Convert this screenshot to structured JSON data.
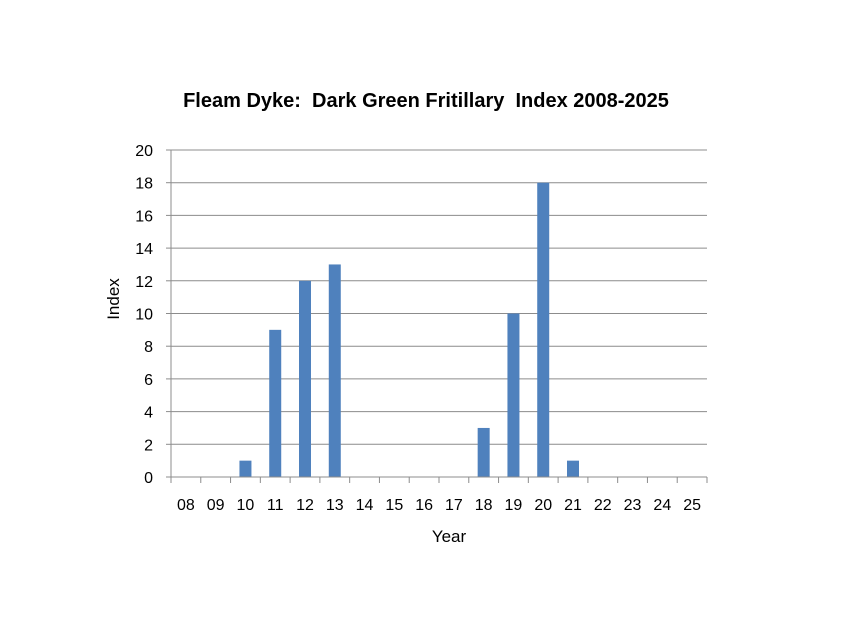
{
  "chart_data": {
    "type": "bar",
    "title": "Fleam Dyke:  Dark Green Fritillary  Index 2008-2025",
    "xlabel": "Year",
    "ylabel": "Index",
    "ylim": [
      0,
      20
    ],
    "ytick_step": 2,
    "grid": true,
    "legend": "none",
    "bar_color": "#4f81bd",
    "categories": [
      "08",
      "09",
      "10",
      "11",
      "12",
      "13",
      "14",
      "15",
      "16",
      "17",
      "18",
      "19",
      "20",
      "21",
      "22",
      "23",
      "24",
      "25"
    ],
    "values": [
      0,
      0,
      1,
      9,
      12,
      13,
      0,
      0,
      0,
      0,
      3,
      10,
      18,
      1,
      0,
      0,
      0,
      0
    ]
  }
}
